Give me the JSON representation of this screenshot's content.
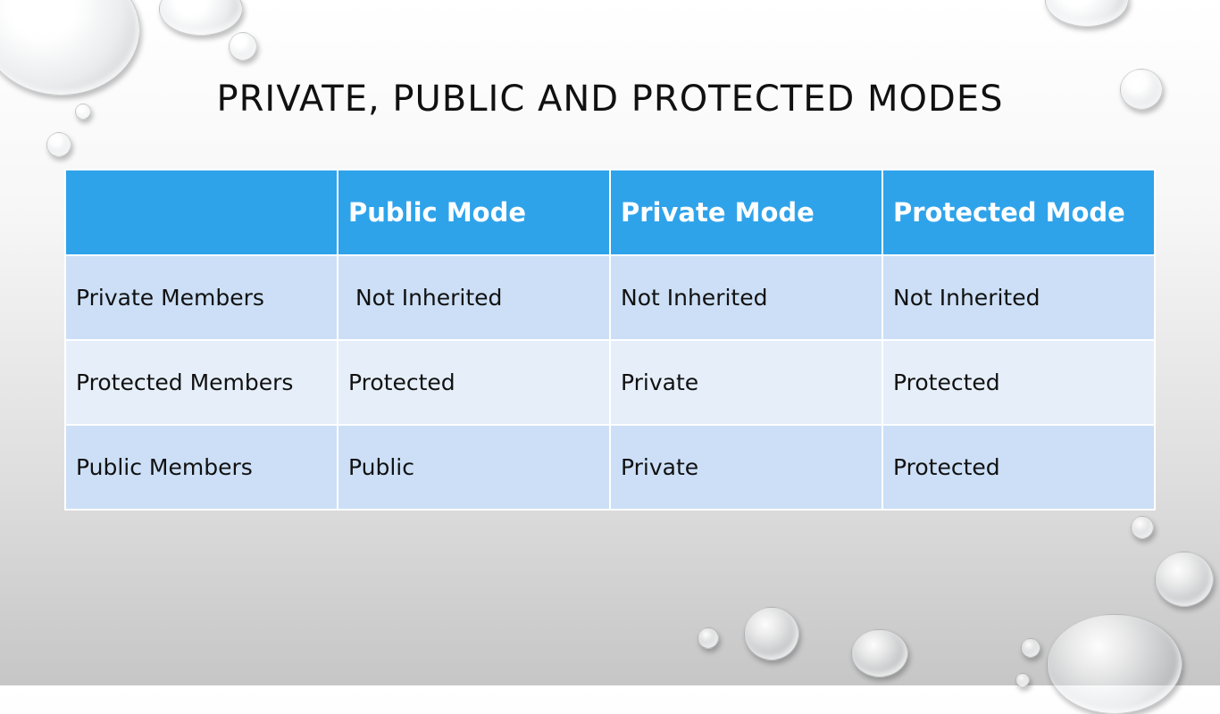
{
  "slide": {
    "title": "PRIVATE, PUBLIC AND PROTECTED MODES"
  },
  "table": {
    "columns": [
      "",
      "Public Mode",
      "Private Mode",
      "Protected Mode"
    ],
    "rows": [
      [
        "Private Members",
        " Not Inherited",
        "Not Inherited",
        "Not Inherited"
      ],
      [
        "Protected Members",
        "Protected",
        "Private",
        "Protected"
      ],
      [
        "Public Members",
        "Public",
        "Private",
        "Protected"
      ]
    ]
  },
  "colors": {
    "header_bg": "#2fa3ea",
    "row_dark": "#ccdff6",
    "row_light": "#e6eff9"
  }
}
